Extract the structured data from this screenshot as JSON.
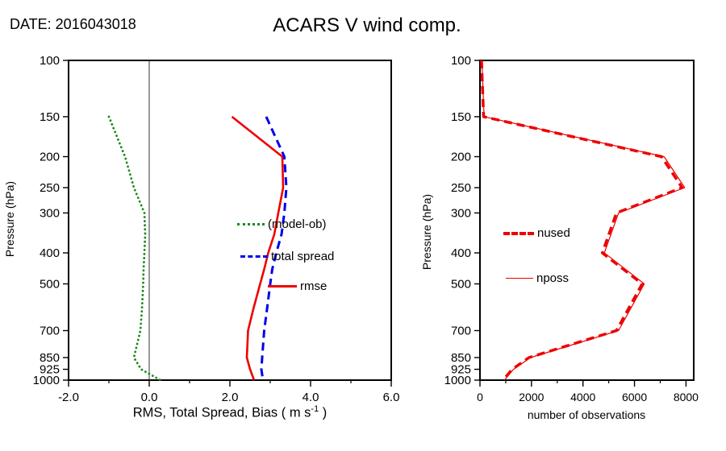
{
  "header": {
    "date_label": "DATE: 2016043018",
    "title": "ACARS V wind comp."
  },
  "left_panel": {
    "xlabel_prefix": "RMS, Total Spread, Bias ( m s",
    "xlabel_sup": "-1",
    "xlabel_suffix": " )"
  },
  "chart_data": [
    {
      "type": "line",
      "title": "ACARS V wind comp.",
      "xlabel": "RMS, Total Spread, Bias ( m s-1 )",
      "ylabel": "Pressure (hPa)",
      "xlim": [
        -2.0,
        6.0
      ],
      "xticks": [
        -2.0,
        0.0,
        2.0,
        4.0,
        6.0
      ],
      "xtick_labels": [
        "-2.0",
        "0.0",
        "2.0",
        "4.0",
        "6.0"
      ],
      "x_minor_step": 1.0,
      "yscale": "log",
      "y_inverted": true,
      "ylim": [
        100,
        1000
      ],
      "yticks": [
        100,
        150,
        200,
        250,
        300,
        400,
        500,
        700,
        850,
        925,
        1000
      ],
      "zero_line": true,
      "grid": false,
      "legend_position": "inside-right",
      "series": [
        {
          "name": "(model-ob)",
          "color": "#1a8a1a",
          "style": "dotted",
          "width": 2.8,
          "pressure": [
            150,
            200,
            250,
            300,
            350,
            400,
            450,
            500,
            600,
            700,
            850,
            925,
            1000
          ],
          "values": [
            -1.0,
            -0.6,
            -0.38,
            -0.12,
            -0.1,
            -0.12,
            -0.14,
            -0.15,
            -0.18,
            -0.22,
            -0.38,
            -0.2,
            0.28
          ]
        },
        {
          "name": "total spread",
          "color": "#0000ee",
          "style": "dashed",
          "width": 3,
          "pressure": [
            150,
            200,
            250,
            300,
            350,
            400,
            450,
            500,
            600,
            700,
            850,
            925,
            1000
          ],
          "values": [
            2.9,
            3.35,
            3.4,
            3.35,
            3.28,
            3.15,
            3.05,
            3.0,
            2.92,
            2.85,
            2.8,
            2.78,
            2.82
          ]
        },
        {
          "name": "rmse",
          "color": "#ee0000",
          "style": "solid",
          "width": 2.6,
          "pressure": [
            150,
            200,
            250,
            300,
            350,
            400,
            450,
            500,
            600,
            700,
            850,
            925,
            1000
          ],
          "values": [
            2.05,
            3.3,
            3.32,
            3.2,
            3.1,
            2.95,
            2.85,
            2.75,
            2.58,
            2.45,
            2.42,
            2.5,
            2.6
          ]
        }
      ]
    },
    {
      "type": "line",
      "title": "",
      "xlabel": "number of observations",
      "ylabel": "Pressure (hPa)",
      "xlim": [
        0,
        8300
      ],
      "xticks": [
        0,
        2000,
        4000,
        6000,
        8000
      ],
      "xtick_labels": [
        "0",
        "2000",
        "4000",
        "6000",
        "8000"
      ],
      "x_minor_step": 1000,
      "yscale": "log",
      "y_inverted": true,
      "ylim": [
        100,
        1000
      ],
      "yticks": [
        100,
        150,
        200,
        250,
        300,
        400,
        500,
        700,
        850,
        925,
        1000
      ],
      "zero_line": false,
      "grid": false,
      "legend_position": "inside-left",
      "series": [
        {
          "name": "nused",
          "color": "#ee0000",
          "style": "dashed",
          "width": 3.5,
          "pressure": [
            100,
            150,
            200,
            250,
            300,
            400,
            500,
            700,
            850,
            925,
            1000
          ],
          "values": [
            60,
            140,
            7050,
            7850,
            5300,
            4750,
            6300,
            5300,
            1900,
            1250,
            900
          ]
        },
        {
          "name": "nposs",
          "color": "#ee0000",
          "style": "solid",
          "width": 1.2,
          "pressure": [
            100,
            150,
            200,
            250,
            300,
            400,
            500,
            700,
            850,
            925,
            1000
          ],
          "values": [
            75,
            160,
            7150,
            7950,
            5380,
            4830,
            6380,
            5380,
            1960,
            1300,
            950
          ]
        }
      ]
    }
  ]
}
